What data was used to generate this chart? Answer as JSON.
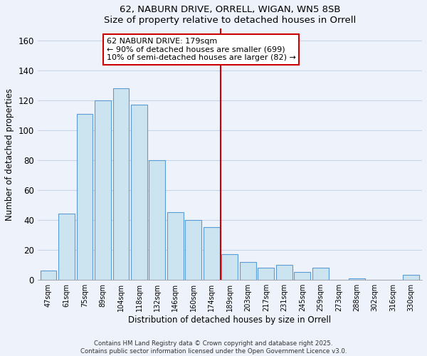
{
  "title": "62, NABURN DRIVE, ORRELL, WIGAN, WN5 8SB",
  "subtitle": "Size of property relative to detached houses in Orrell",
  "xlabel": "Distribution of detached houses by size in Orrell",
  "ylabel": "Number of detached properties",
  "bar_labels": [
    "47sqm",
    "61sqm",
    "75sqm",
    "89sqm",
    "104sqm",
    "118sqm",
    "132sqm",
    "146sqm",
    "160sqm",
    "174sqm",
    "189sqm",
    "203sqm",
    "217sqm",
    "231sqm",
    "245sqm",
    "259sqm",
    "273sqm",
    "288sqm",
    "302sqm",
    "316sqm",
    "330sqm"
  ],
  "bar_values": [
    6,
    44,
    111,
    120,
    128,
    117,
    80,
    45,
    40,
    35,
    17,
    12,
    8,
    10,
    5,
    8,
    0,
    1,
    0,
    0,
    3
  ],
  "bar_color": "#cce4f0",
  "bar_edge_color": "#5b9bd5",
  "vline_color": "#cc0000",
  "annotation_title": "62 NABURN DRIVE: 179sqm",
  "annotation_line1": "← 90% of detached houses are smaller (699)",
  "annotation_line2": "10% of semi-detached houses are larger (82) →",
  "annotation_box_color": "white",
  "annotation_box_edge": "#cc0000",
  "ylim": [
    0,
    168
  ],
  "yticks": [
    0,
    20,
    40,
    60,
    80,
    100,
    120,
    140,
    160
  ],
  "footer1": "Contains HM Land Registry data © Crown copyright and database right 2025.",
  "footer2": "Contains public sector information licensed under the Open Government Licence v3.0.",
  "bg_color": "#eef2fa",
  "grid_color": "#c8d4e8"
}
